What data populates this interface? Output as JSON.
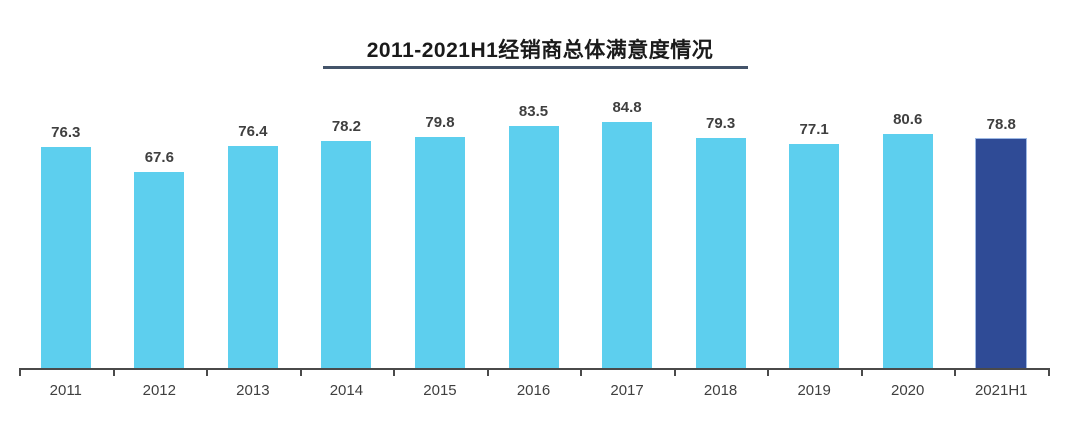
{
  "chart_data": {
    "type": "bar",
    "title": "2011-2021H1经销商总体满意度情况",
    "categories": [
      "2011",
      "2012",
      "2013",
      "2014",
      "2015",
      "2016",
      "2017",
      "2018",
      "2019",
      "2020",
      "2021H1"
    ],
    "values": [
      76.3,
      67.6,
      76.4,
      78.2,
      79.8,
      83.5,
      84.8,
      79.3,
      77.1,
      80.6,
      78.8
    ],
    "xlabel": "",
    "ylabel": "",
    "ylim": [
      0,
      90
    ],
    "grid": false,
    "legend": false,
    "data_labels_shown": true,
    "highlight_category": "2021H1",
    "colors": {
      "bar_default": "#5dcfee",
      "bar_highlight": "#2f4b96",
      "bar_highlight_edge": "#9db8e4",
      "title_text": "#1a1a1a",
      "title_underline": "#44546a",
      "axis_line": "#4a4a4a",
      "label_text": "#3f3f3f"
    }
  }
}
